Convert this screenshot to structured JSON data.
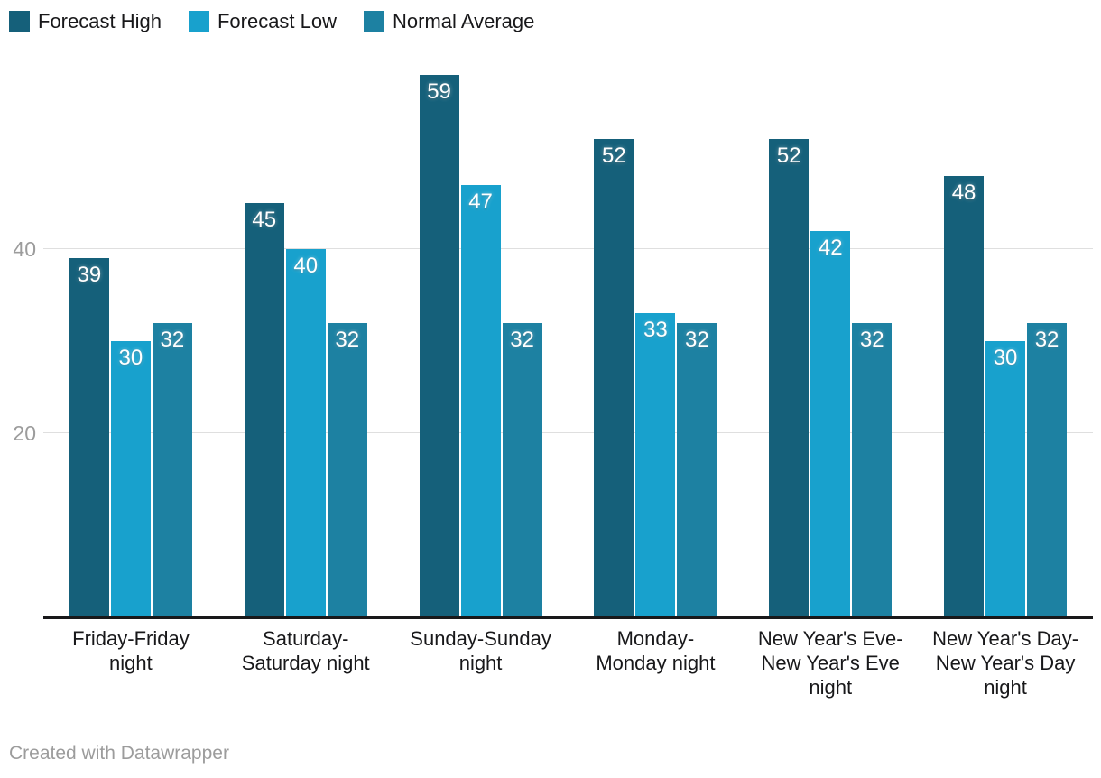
{
  "chart_data": {
    "type": "bar",
    "grouped": true,
    "categories": [
      "Friday-Friday\nnight",
      "Saturday-\nSaturday night",
      "Sunday-Sunday\nnight",
      "Monday-\nMonday night",
      "New Year's Eve-\nNew Year's Eve\nnight",
      "New Year's Day-\nNew Year's Day\nnight"
    ],
    "series": [
      {
        "name": "Forecast High",
        "color": "#15607a",
        "values": [
          39,
          45,
          59,
          52,
          52,
          48
        ]
      },
      {
        "name": "Forecast Low",
        "color": "#18a1cd",
        "values": [
          30,
          40,
          47,
          33,
          42,
          30
        ]
      },
      {
        "name": "Normal Average",
        "color": "#1d81a2",
        "values": [
          32,
          32,
          32,
          32,
          32,
          32
        ]
      }
    ],
    "yticks": [
      20,
      40
    ],
    "ylim": [
      0,
      59
    ],
    "grid": "horizontal",
    "legend_position": "top-left",
    "title": "",
    "xlabel": "",
    "ylabel": ""
  },
  "colors": {
    "axis_line": "#18181a",
    "gridline": "#dfdfdf",
    "tick_label": "#9c9c9c",
    "category_label": "#18181a",
    "bar_value_label": "#ffffff"
  },
  "footer": {
    "credit": "Created with Datawrapper"
  }
}
